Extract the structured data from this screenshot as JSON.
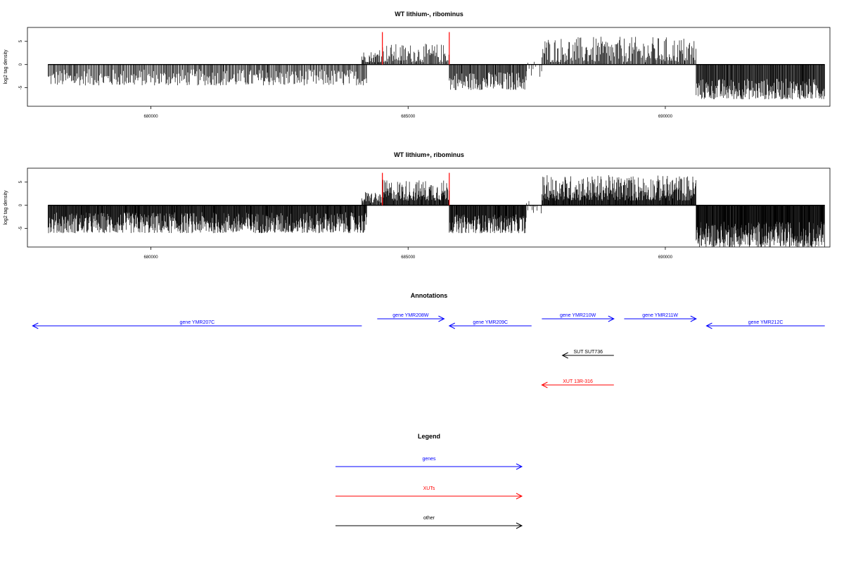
{
  "chart_data": [
    {
      "type": "bar",
      "title": "WT lithium-, ribominus",
      "ylabel": "log2 tag density",
      "xlim": [
        677600,
        693200
      ],
      "ylim": [
        -9,
        8
      ],
      "x_ticks": [
        680000,
        685000,
        690000
      ],
      "x_tick_labels": [
        "680000",
        "685000",
        "690000"
      ],
      "y_ticks": [
        -5,
        0,
        5
      ],
      "y_tick_labels": [
        "-5",
        "0",
        "5"
      ],
      "baseline_range": [
        678000,
        693100
      ],
      "series": [
        {
          "values_color": "#000000",
          "segments": [
            {
              "start": 678000,
              "end": 684200,
              "min": -4.5,
              "max": -1,
              "density": 1.2
            },
            {
              "start": 684100,
              "end": 684400,
              "min": 0.5,
              "max": 3,
              "density": 1.6
            },
            {
              "start": 684400,
              "end": 685800,
              "min": 0.5,
              "max": 4.5,
              "density": 1.3
            },
            {
              "start": 685800,
              "end": 687300,
              "min": -5.5,
              "max": -1.5,
              "density": 1.6
            },
            {
              "start": 687300,
              "end": 687600,
              "min": -3,
              "max": 1,
              "density": 0.6
            },
            {
              "start": 687600,
              "end": 690600,
              "min": 0.5,
              "max": 6,
              "density": 1.3
            },
            {
              "start": 690600,
              "end": 693100,
              "min": -7.5,
              "max": -3,
              "density": 2.0
            }
          ]
        },
        {
          "name": "",
          "values_color": "#ff0000",
          "spikes": [
            {
              "x": 684500,
              "y": 7
            },
            {
              "x": 685800,
              "y": 7
            }
          ]
        }
      ]
    },
    {
      "type": "bar",
      "title": "WT lithium+, ribominus",
      "ylabel": "log2 tag density",
      "xlim": [
        677600,
        693200
      ],
      "ylim": [
        -9,
        8
      ],
      "x_ticks": [
        680000,
        685000,
        690000
      ],
      "x_tick_labels": [
        "680000",
        "685000",
        "690000"
      ],
      "y_ticks": [
        -5,
        0,
        5
      ],
      "y_tick_labels": [
        "-5",
        "0",
        "5"
      ],
      "baseline_range": [
        678000,
        693100
      ],
      "series": [
        {
          "values_color": "#000000",
          "segments": [
            {
              "start": 678000,
              "end": 684200,
              "min": -6,
              "max": -1.5,
              "density": 2.4
            },
            {
              "start": 684100,
              "end": 684500,
              "min": 0.5,
              "max": 3,
              "density": 1.8
            },
            {
              "start": 684500,
              "end": 685800,
              "min": 1,
              "max": 5.5,
              "density": 2.2
            },
            {
              "start": 685800,
              "end": 687300,
              "min": -6,
              "max": -2,
              "density": 2.4
            },
            {
              "start": 687300,
              "end": 687600,
              "min": -2,
              "max": 1,
              "density": 0.6
            },
            {
              "start": 687600,
              "end": 690600,
              "min": 1,
              "max": 6.5,
              "density": 2.4
            },
            {
              "start": 690600,
              "end": 693100,
              "min": -9,
              "max": -3.5,
              "density": 2.8
            }
          ]
        },
        {
          "values_color": "#ff0000",
          "spikes": [
            {
              "x": 684500,
              "y": 7
            },
            {
              "x": 685800,
              "y": 7
            }
          ]
        }
      ]
    },
    {
      "type": "annotation-track",
      "title": "Annotations",
      "xlim": [
        677600,
        693200
      ],
      "features": [
        {
          "label": "gene YMR207C",
          "start": 677700,
          "end": 684100,
          "strand": "-",
          "row": 0,
          "color": "#0000ff"
        },
        {
          "label": "gene YMR208W",
          "start": 684400,
          "end": 685700,
          "strand": "+",
          "row": 1,
          "color": "#0000ff"
        },
        {
          "label": "gene YMR209C",
          "start": 685800,
          "end": 687400,
          "strand": "-",
          "row": 0,
          "color": "#0000ff"
        },
        {
          "label": "gene YMR210W",
          "start": 687600,
          "end": 689000,
          "strand": "+",
          "row": 1,
          "color": "#0000ff"
        },
        {
          "label": "gene YMR211W",
          "start": 689200,
          "end": 690600,
          "strand": "+",
          "row": 1,
          "color": "#0000ff"
        },
        {
          "label": "gene YMR212C",
          "start": 690800,
          "end": 693100,
          "strand": "-",
          "row": 0,
          "color": "#0000ff"
        },
        {
          "label": "SUT SUT736",
          "start": 688000,
          "end": 689000,
          "strand": "-",
          "row": 2,
          "color": "#000000"
        },
        {
          "label": "XUT 13R-316",
          "start": 687600,
          "end": 689000,
          "strand": "-",
          "row": 3,
          "color": "#ff0000"
        }
      ]
    },
    {
      "type": "legend",
      "title": "Legend",
      "items": [
        {
          "label": "genes",
          "color": "#0000ff"
        },
        {
          "label": "XUTs",
          "color": "#ff0000"
        },
        {
          "label": "other",
          "color": "#000000"
        }
      ]
    }
  ]
}
